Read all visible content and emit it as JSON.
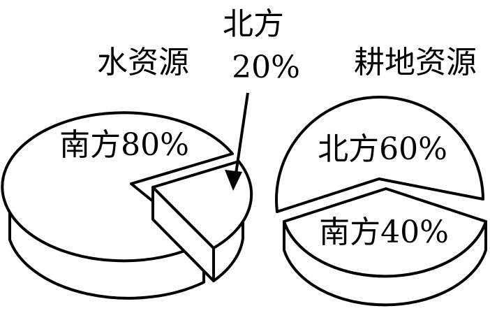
{
  "chart_data": [
    {
      "type": "pie",
      "title": "水资源",
      "slices": [
        {
          "label": "南方80%",
          "category": "南方",
          "value": 80
        },
        {
          "label": "北方",
          "category": "北方",
          "value": 20,
          "value_label": "20%"
        }
      ],
      "style": "3d-exploded"
    },
    {
      "type": "pie",
      "title": "耕地资源",
      "slices": [
        {
          "label": "北方60%",
          "category": "北方",
          "value": 60
        },
        {
          "label": "南方40%",
          "category": "南方",
          "value": 40
        }
      ],
      "style": "3d-exploded"
    }
  ]
}
